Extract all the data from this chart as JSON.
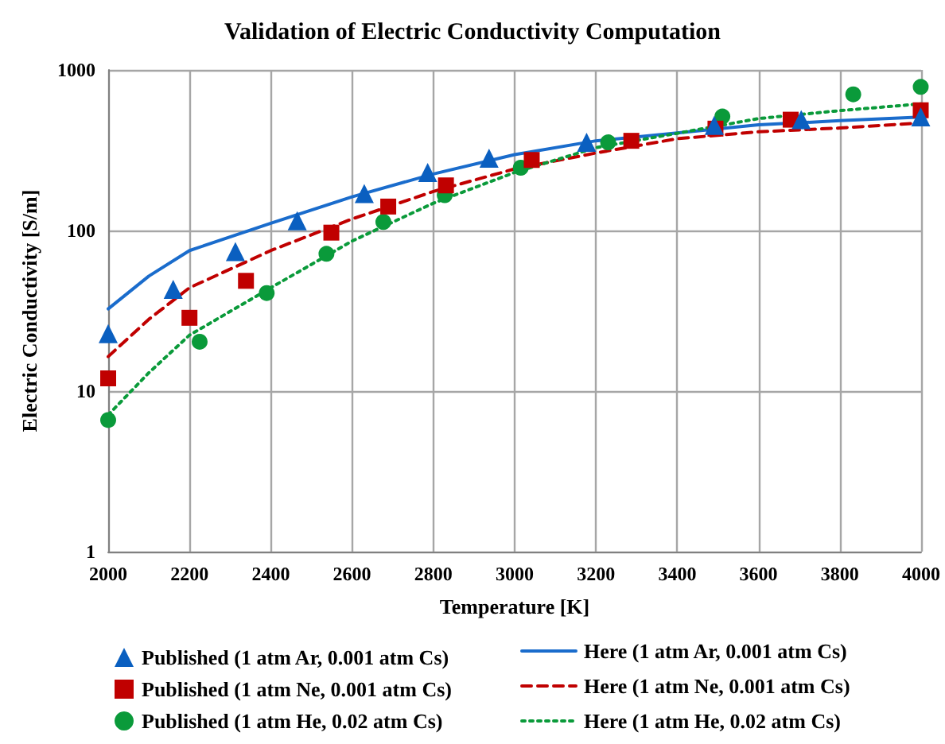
{
  "chart_data": {
    "type": "scatter",
    "title": "Validation of Electric Conductivity Computation",
    "xlabel": "Temperature [K]",
    "ylabel": "Electric Conductivity [S/m]",
    "xlim": [
      2000,
      4000
    ],
    "xticks": [
      2000,
      2200,
      2400,
      2600,
      2800,
      3000,
      3200,
      3400,
      3600,
      3800,
      4000
    ],
    "ylim": [
      1,
      1000
    ],
    "yticks": [
      1,
      10,
      100,
      1000
    ],
    "log": "y",
    "grid": true,
    "legend": "bottom",
    "series": [
      {
        "name": "Published (1 atm Ar, 0.001 atm Cs)",
        "type": "scatter",
        "marker": "triangle",
        "color": "#0a5fc0",
        "x": [
          2000,
          2160,
          2313,
          2465,
          2630,
          2786,
          2937,
          3177,
          3491,
          3705,
          3999
        ],
        "values": [
          22.8,
          43,
          74,
          115,
          170,
          230,
          282,
          354,
          451,
          490,
          510
        ]
      },
      {
        "name": "Here (1 atm Ar, 0.001 atm Cs)",
        "type": "line",
        "line_style": "solid",
        "color": "#1a6ccc",
        "x": [
          2000,
          2100,
          2200,
          2400,
          2600,
          2800,
          3000,
          3200,
          3400,
          3600,
          3800,
          4000
        ],
        "values": [
          32.5,
          52,
          75,
          111,
          162,
          225,
          297,
          362,
          405,
          455,
          483,
          509
        ]
      },
      {
        "name": "Published (1 atm Ne, 0.001 atm Cs)",
        "type": "scatter",
        "marker": "square",
        "color": "#c00000",
        "x": [
          2000,
          2200,
          2339,
          2549,
          2689,
          2831,
          3042,
          3287,
          3494,
          3679,
          3999
        ],
        "values": [
          12,
          28.6,
          48.6,
          97,
          141,
          191,
          275,
          362,
          431,
          490,
          561
        ]
      },
      {
        "name": "Here (1 atm Ne, 0.001 atm Cs)",
        "type": "line",
        "line_style": "dashed",
        "color": "#c00000",
        "x": [
          2000,
          2100,
          2200,
          2400,
          2600,
          2800,
          3000,
          3200,
          3400,
          3600,
          3800,
          4000
        ],
        "values": [
          16.4,
          28,
          44,
          75,
          118,
          175,
          242,
          304,
          373,
          412,
          435,
          468
        ]
      },
      {
        "name": "Published (1 atm He, 0.02 atm Cs)",
        "type": "scatter",
        "marker": "circle",
        "color": "#0a9a3a",
        "x": [
          2000,
          2225,
          2390,
          2537,
          2677,
          2828,
          3015,
          3230,
          3511,
          3833,
          3999
        ],
        "values": [
          6.6,
          20.3,
          40.8,
          71.6,
          113,
          166,
          246,
          354,
          513,
          705,
          784
        ]
      },
      {
        "name": "Here (1 atm He, 0.02 atm Cs)",
        "type": "line",
        "line_style": "dotted",
        "color": "#0a9a3a",
        "x": [
          2000,
          2100,
          2200,
          2400,
          2600,
          2800,
          3000,
          3200,
          3400,
          3600,
          3800,
          4000
        ],
        "values": [
          7.1,
          13,
          22.3,
          44,
          86,
          148,
          230,
          328,
          403,
          498,
          558,
          615
        ]
      }
    ]
  }
}
